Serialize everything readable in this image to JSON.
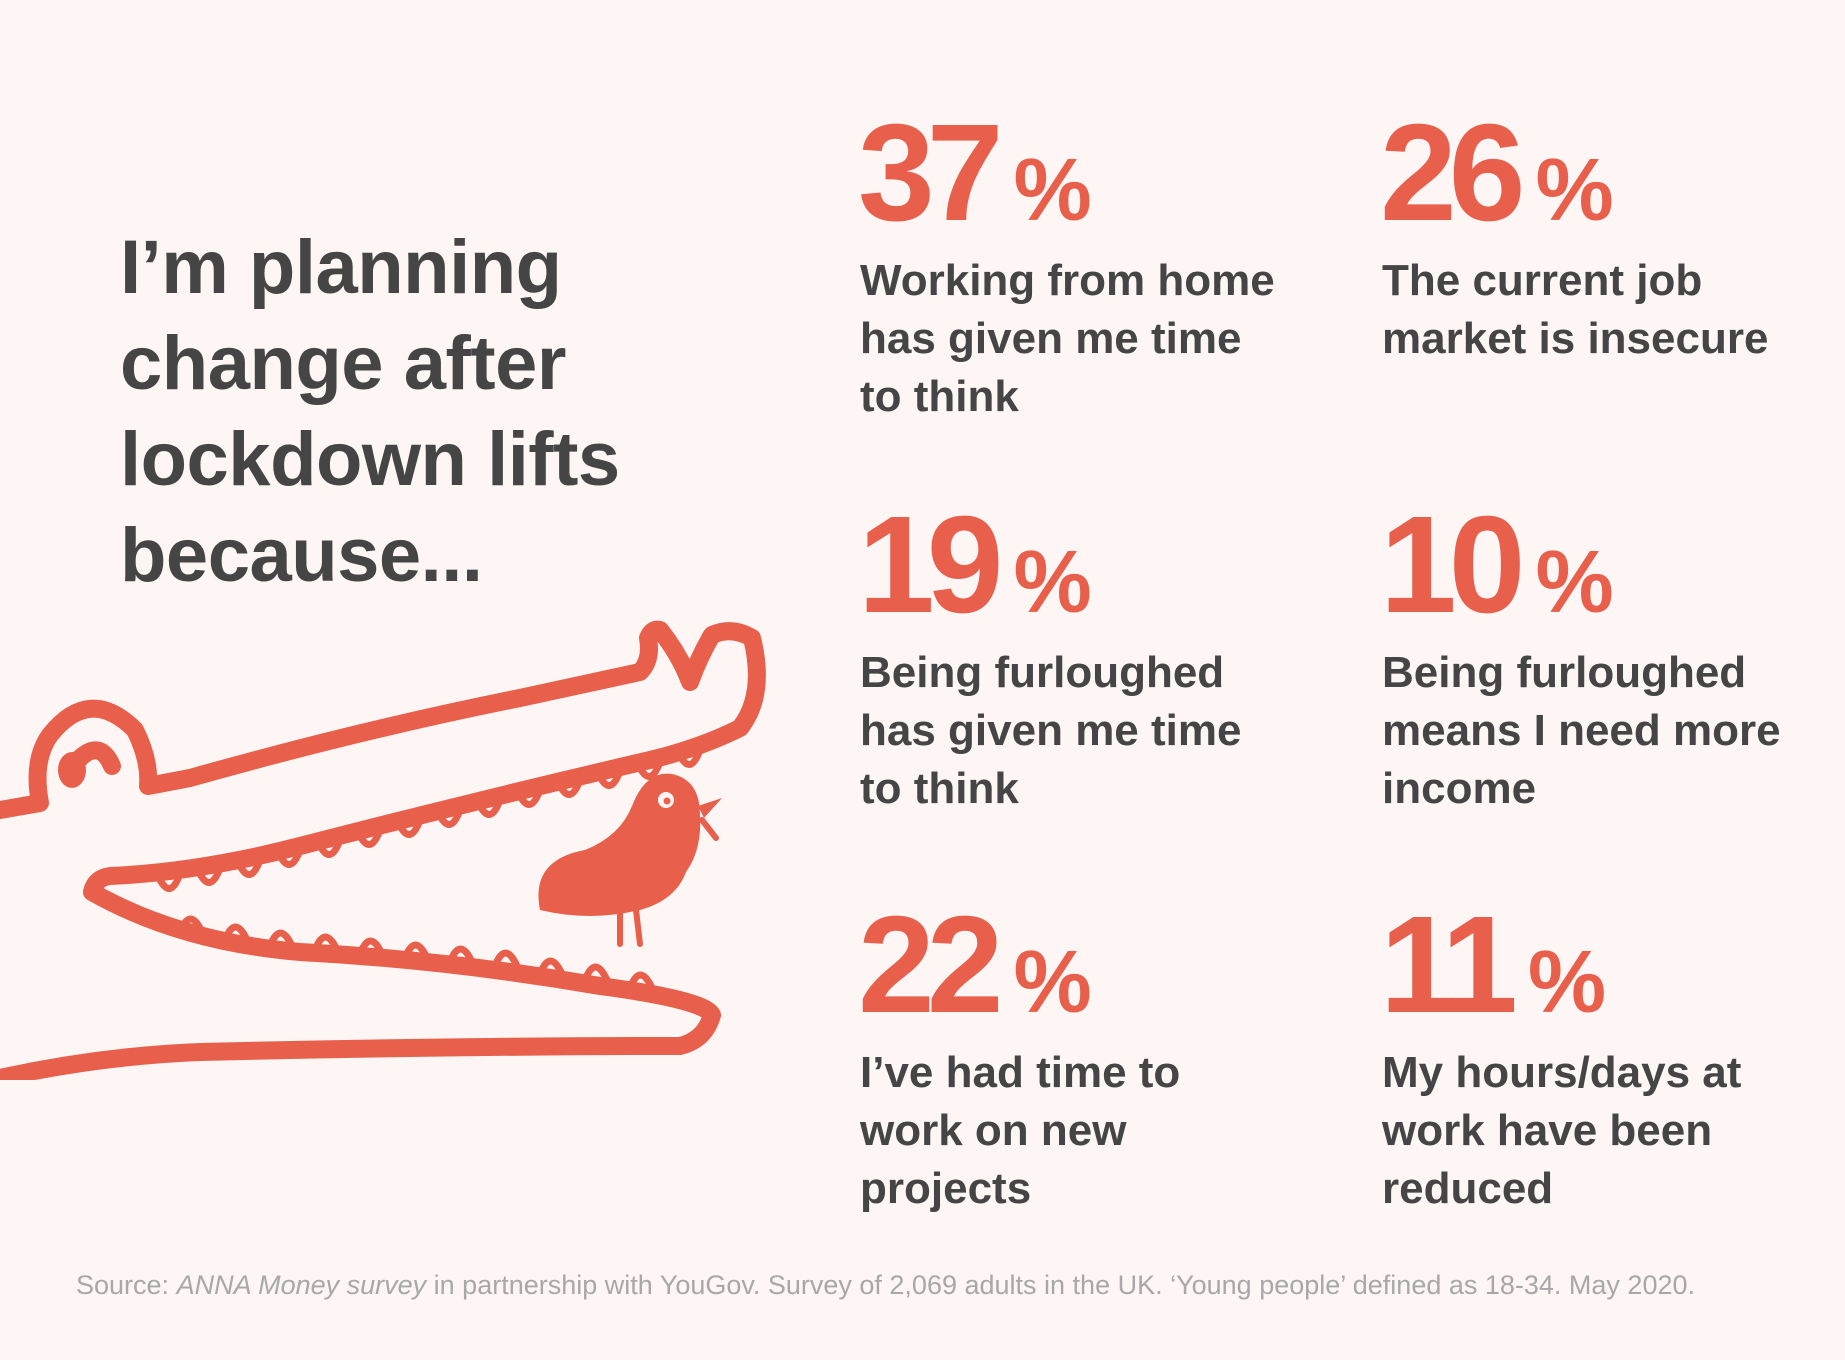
{
  "headline": "I’m planning change after lockdown lifts because...",
  "colors": {
    "accent": "#e8604c",
    "text": "#454545",
    "muted": "#a8a8a8",
    "background": "#fdf6f4"
  },
  "illustration": {
    "icon": "crocodile-and-bird-icon"
  },
  "stats": [
    {
      "value": "37",
      "unit": "%",
      "description": "Working from home has given me time to think"
    },
    {
      "value": "26",
      "unit": "%",
      "description": "The current job market is insecure"
    },
    {
      "value": "19",
      "unit": "%",
      "description": "Being furloughed has given me time to think"
    },
    {
      "value": "10",
      "unit": "%",
      "description": "Being furloughed means I need more income"
    },
    {
      "value": "22",
      "unit": "%",
      "description": "I’ve had time to work on new projects"
    },
    {
      "value": "11",
      "unit": "%",
      "description": "My hours/days at work have been reduced"
    }
  ],
  "source": {
    "prefix": "Source: ",
    "survey_name": "ANNA Money survey",
    "rest": " in partnership with YouGov. Survey of 2,069 adults in the UK. ‘Young people’ defined as 18-34. May 2020."
  }
}
